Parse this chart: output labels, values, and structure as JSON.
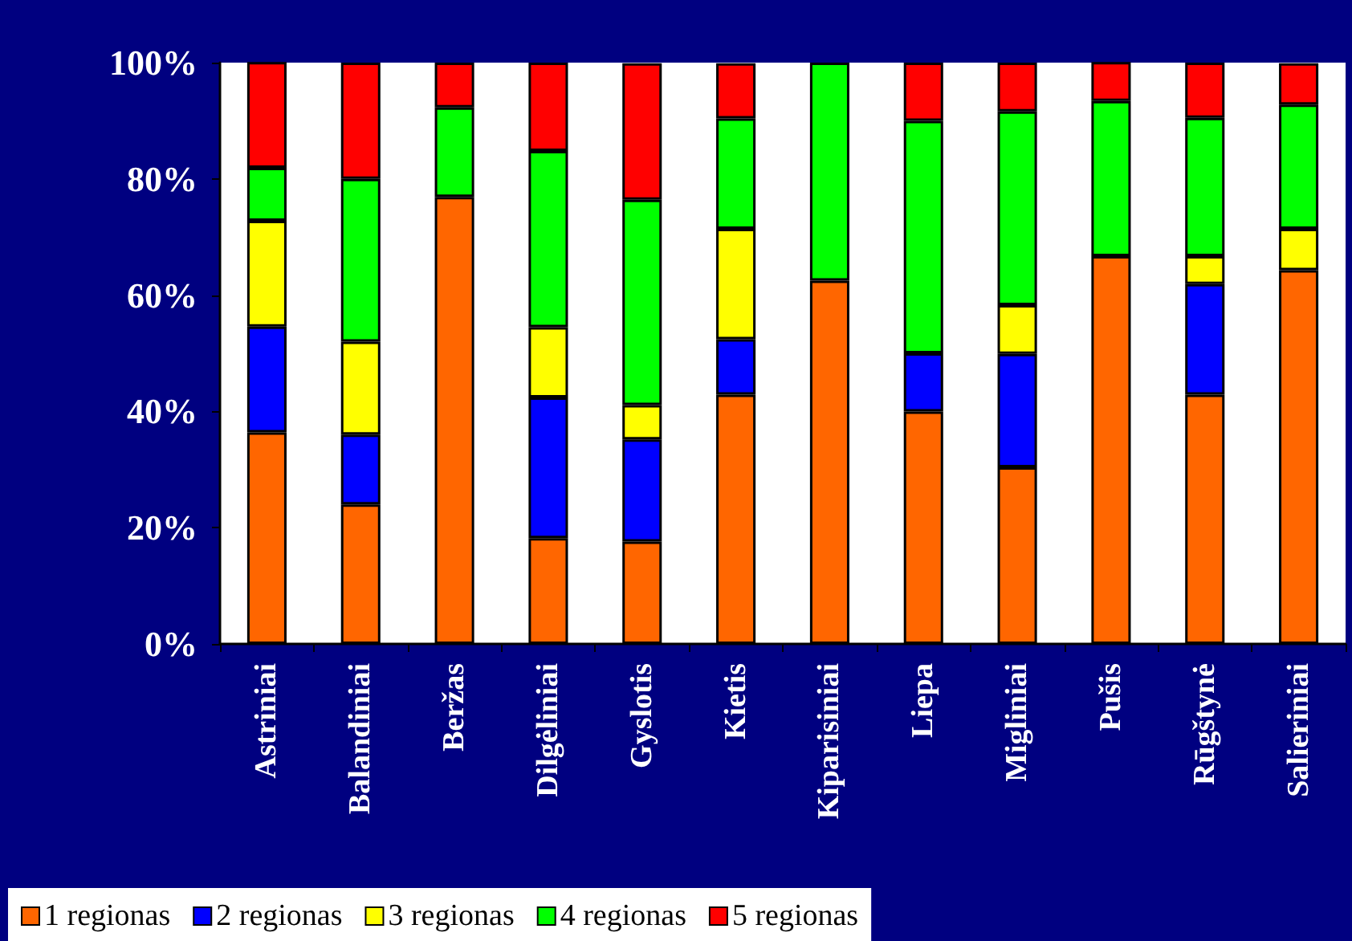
{
  "chart_data": {
    "type": "bar",
    "stacked": true,
    "categories": [
      "Astriniai",
      "Balandiniai",
      "Beržas",
      "Dilgėliniai",
      "Gyslotis",
      "Kietis",
      "Kiparisiniai",
      "Liepa",
      "Migliniai",
      "Pušis",
      "Rūgštynė",
      "Salieriniai"
    ],
    "series": [
      {
        "name": "1 regionas",
        "color": "#ff6600",
        "values": [
          36.4,
          24,
          76.9,
          18.2,
          17.6,
          42.9,
          62.5,
          40,
          30.4,
          66.7,
          42.9,
          64.3
        ]
      },
      {
        "name": "2 regionas",
        "color": "#0000ff",
        "values": [
          18.2,
          12,
          null,
          24.2,
          17.6,
          9.5,
          null,
          10,
          19.5,
          null,
          19,
          null
        ]
      },
      {
        "name": "3 regionas",
        "color": "#ffff00",
        "values": [
          18.2,
          16,
          null,
          12.1,
          5.9,
          19,
          null,
          null,
          8.4,
          null,
          4.8,
          7.1
        ]
      },
      {
        "name": "4 regionas",
        "color": "#00ff00",
        "values": [
          9.1,
          28,
          15.4,
          30.3,
          35.3,
          19,
          37.5,
          40,
          33.3,
          26.7,
          23.8,
          21.4
        ]
      },
      {
        "name": "5 regionas",
        "color": "#ff0000",
        "values": [
          18.2,
          20,
          7.7,
          15.2,
          23.5,
          9.5,
          null,
          10,
          8.4,
          6.7,
          9.5,
          7.1
        ]
      }
    ],
    "ylim": [
      0,
      100
    ],
    "yticks": [
      {
        "value": 0,
        "label": "0%"
      },
      {
        "value": 20,
        "label": "20%"
      },
      {
        "value": 40,
        "label": "40%"
      },
      {
        "value": 60,
        "label": "60%"
      },
      {
        "value": 80,
        "label": "80%"
      },
      {
        "value": 100,
        "label": "100%"
      }
    ],
    "grid": false,
    "legend": "bottom left"
  }
}
